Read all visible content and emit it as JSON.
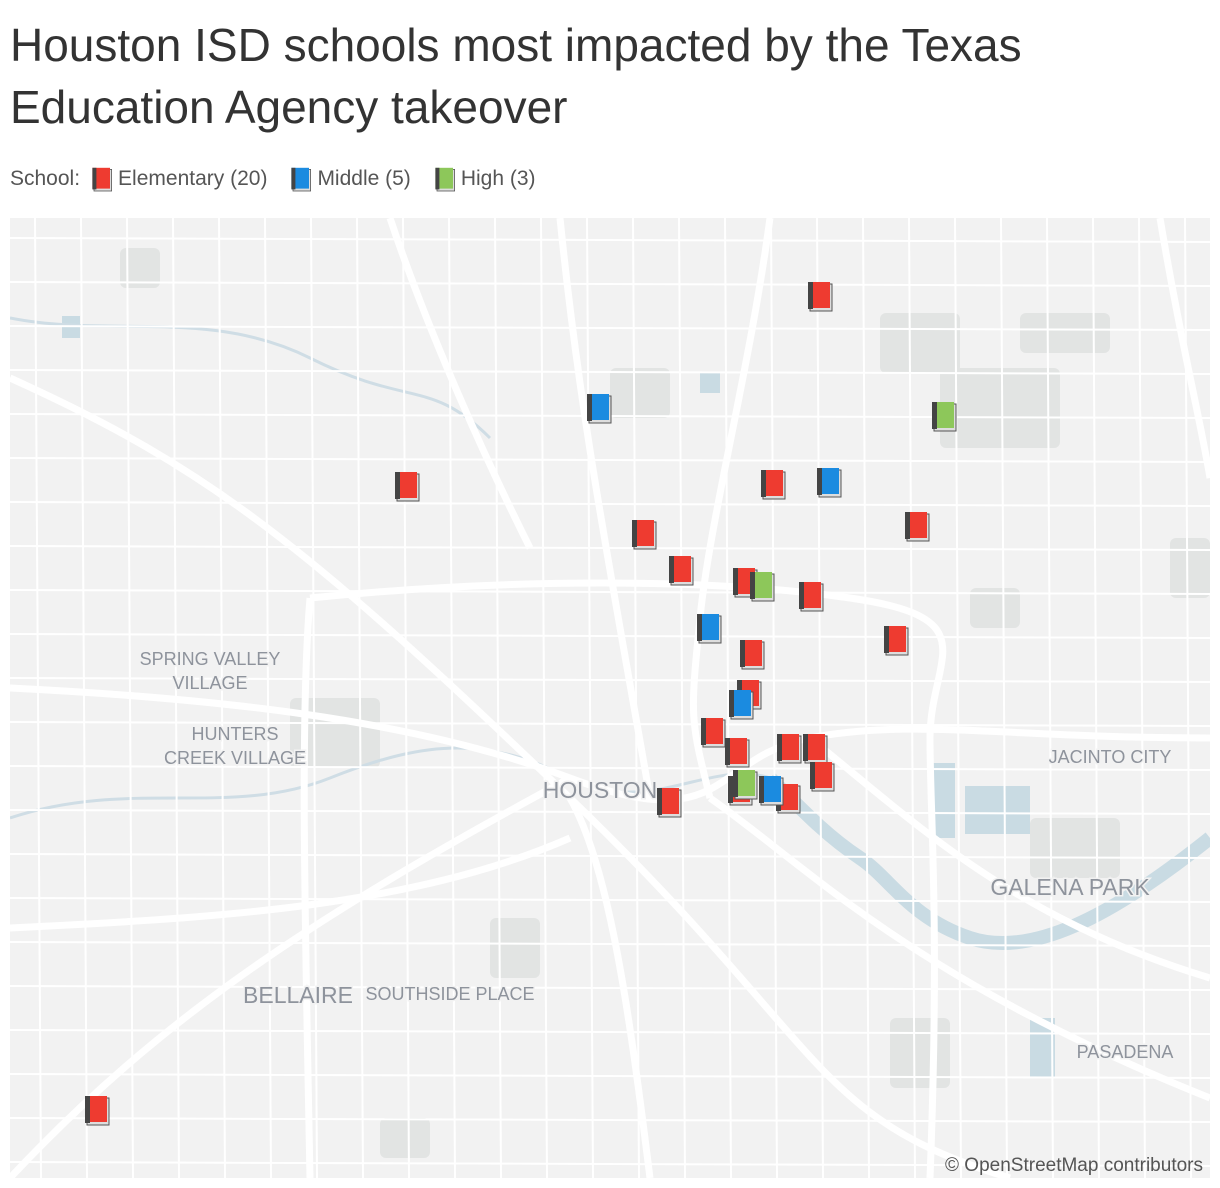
{
  "header": {
    "title": "Houston ISD schools most impacted by the Texas Education Agency takeover"
  },
  "legend": {
    "label": "School:",
    "items": [
      {
        "name": "Elementary (20)",
        "color": "#ee3b30"
      },
      {
        "name": "Middle (5)",
        "color": "#1b8be0"
      },
      {
        "name": "High (3)",
        "color": "#8dc75a"
      }
    ]
  },
  "map": {
    "places": [
      {
        "lines": [
          "SPRING VALLEY",
          "VILLAGE"
        ]
      },
      {
        "lines": [
          "HUNTERS",
          "CREEK VILLAGE"
        ]
      },
      {
        "lines": [
          "HOUSTON"
        ]
      },
      {
        "lines": [
          "JACINTO CITY"
        ]
      },
      {
        "lines": [
          "GALENA PARK"
        ]
      },
      {
        "lines": [
          "BELLAIRE"
        ]
      },
      {
        "lines": [
          "SOUTHSIDE PLACE"
        ]
      },
      {
        "lines": [
          "PASADENA"
        ]
      }
    ],
    "attribution": "© OpenStreetMap contributors"
  }
}
